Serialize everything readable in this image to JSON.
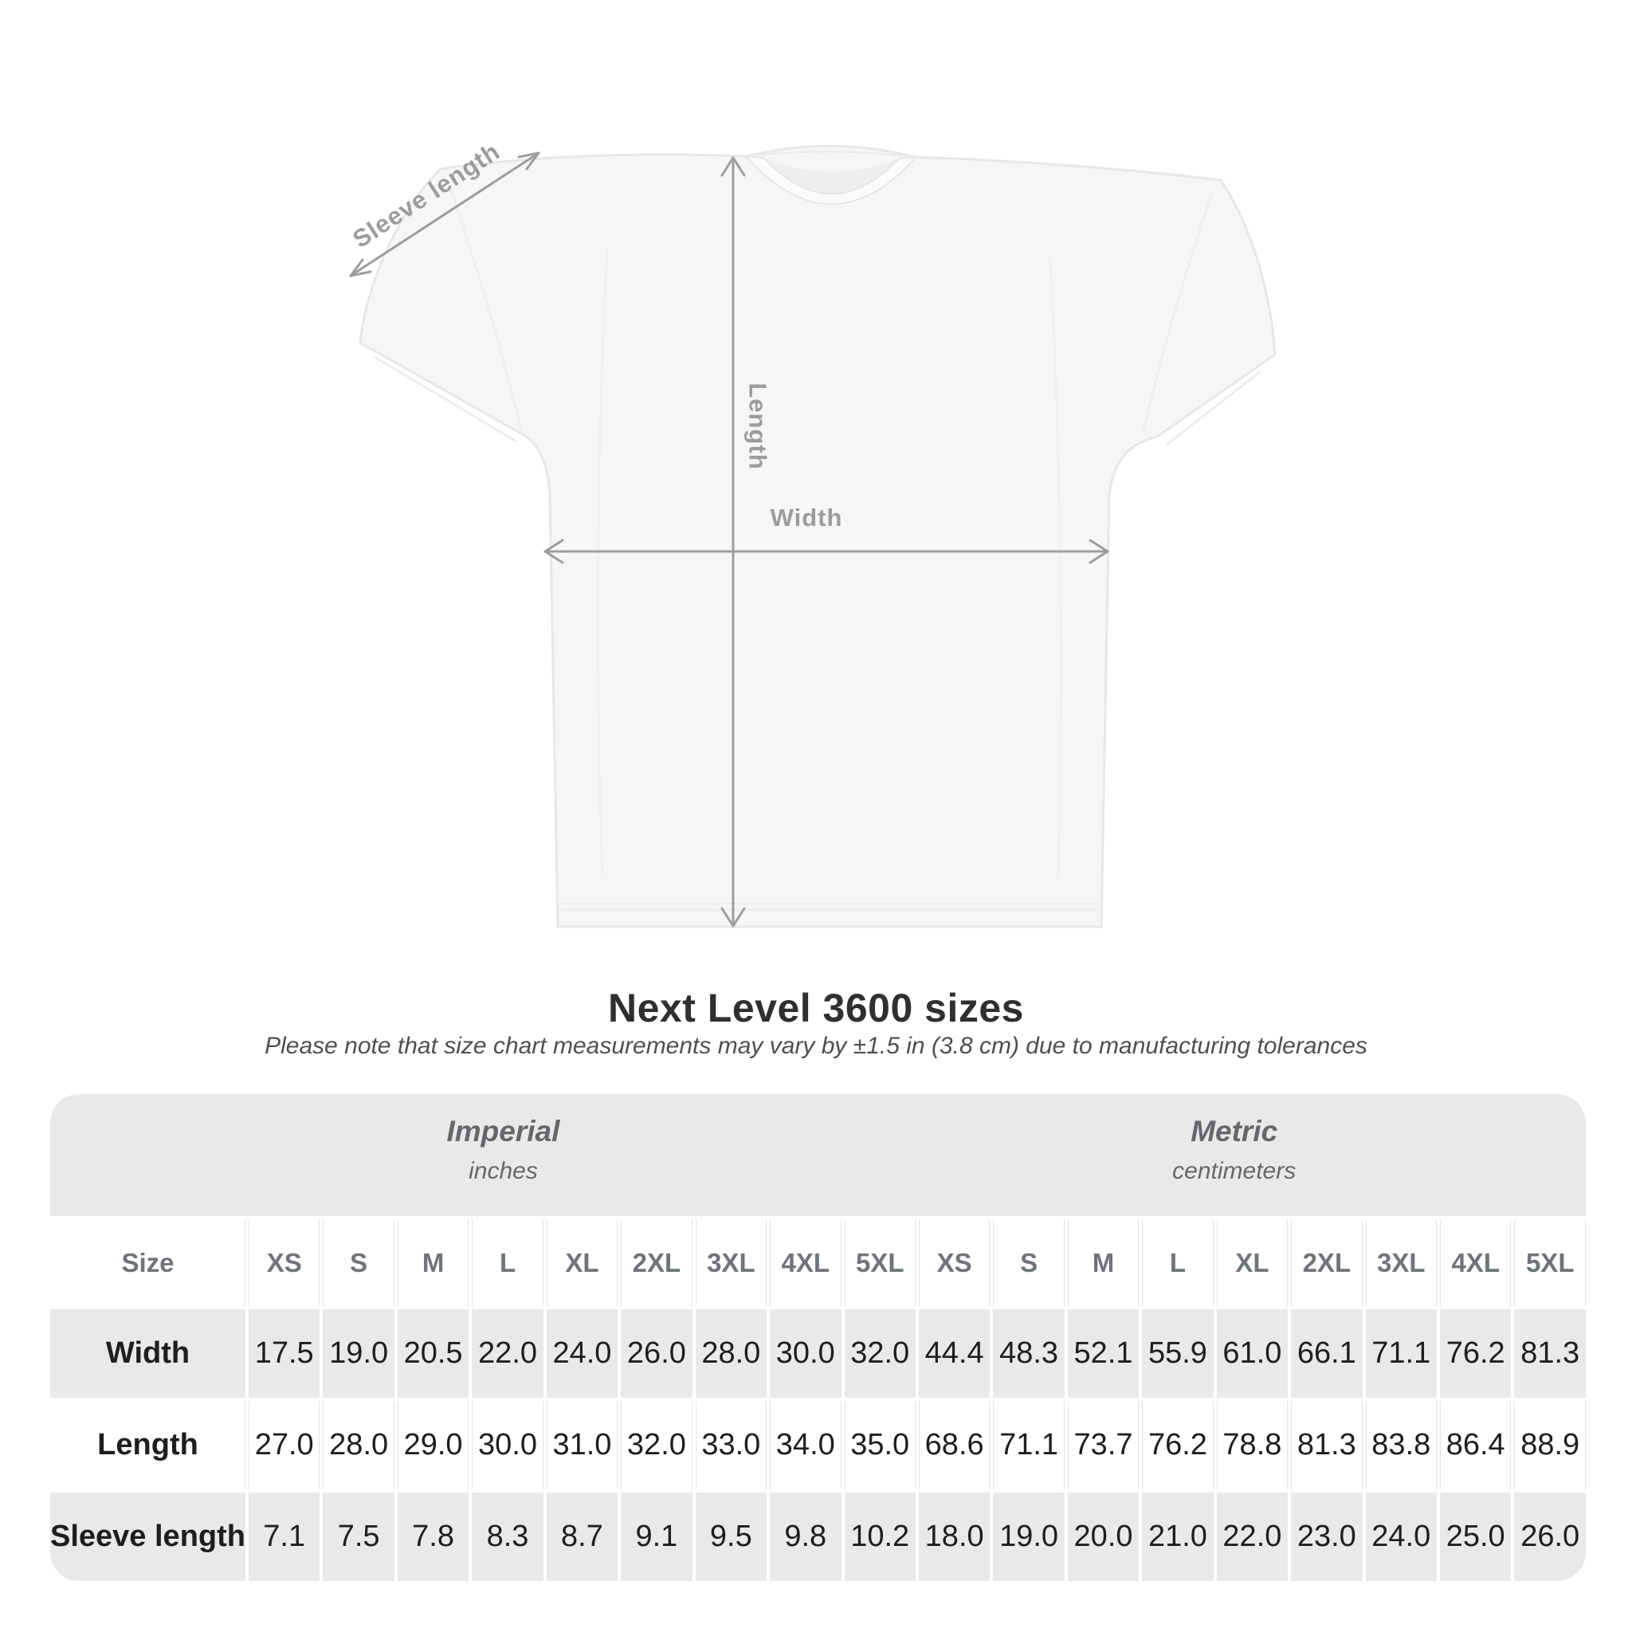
{
  "diagram": {
    "sleeve_label": "Sleeve length",
    "length_label": "Length",
    "width_label": "Width",
    "arrow_color": "#9d9d9f",
    "shirt_fill": "#f6f6f7",
    "shirt_outline": "#e7e7e8"
  },
  "heading": {
    "title": "Next Level 3600 sizes",
    "subtitle": "Please note that size chart measurements may vary by ±1.5 in (3.8 cm) due to manufacturing tolerances"
  },
  "size_chart": {
    "unit_groups": [
      {
        "name": "Imperial",
        "unit": "inches"
      },
      {
        "name": "Metric",
        "unit": "centimeters"
      }
    ],
    "corner_label": "Size",
    "sizes": [
      "XS",
      "S",
      "M",
      "L",
      "XL",
      "2XL",
      "3XL",
      "4XL",
      "5XL"
    ],
    "rows": [
      {
        "label": "Width",
        "imperial": [
          "17.5",
          "19.0",
          "20.5",
          "22.0",
          "24.0",
          "26.0",
          "28.0",
          "30.0",
          "32.0"
        ],
        "metric": [
          "44.4",
          "48.3",
          "52.1",
          "55.9",
          "61.0",
          "66.1",
          "71.1",
          "76.2",
          "81.3"
        ]
      },
      {
        "label": "Length",
        "imperial": [
          "27.0",
          "28.0",
          "29.0",
          "30.0",
          "31.0",
          "32.0",
          "33.0",
          "34.0",
          "35.0"
        ],
        "metric": [
          "68.6",
          "71.1",
          "73.7",
          "76.2",
          "78.8",
          "81.3",
          "83.8",
          "86.4",
          "88.9"
        ]
      },
      {
        "label": "Sleeve length",
        "imperial": [
          "7.1",
          "7.5",
          "7.8",
          "8.3",
          "8.7",
          "9.1",
          "9.5",
          "9.8",
          "10.2"
        ],
        "metric": [
          "18.0",
          "19.0",
          "20.0",
          "21.0",
          "22.0",
          "23.0",
          "24.0",
          "25.0",
          "26.0"
        ]
      }
    ],
    "colors": {
      "band_bg": "#e9e9ea",
      "header_text": "#6e7579",
      "value_text": "#1e1e1e",
      "separator": "#e3e3e4"
    }
  }
}
